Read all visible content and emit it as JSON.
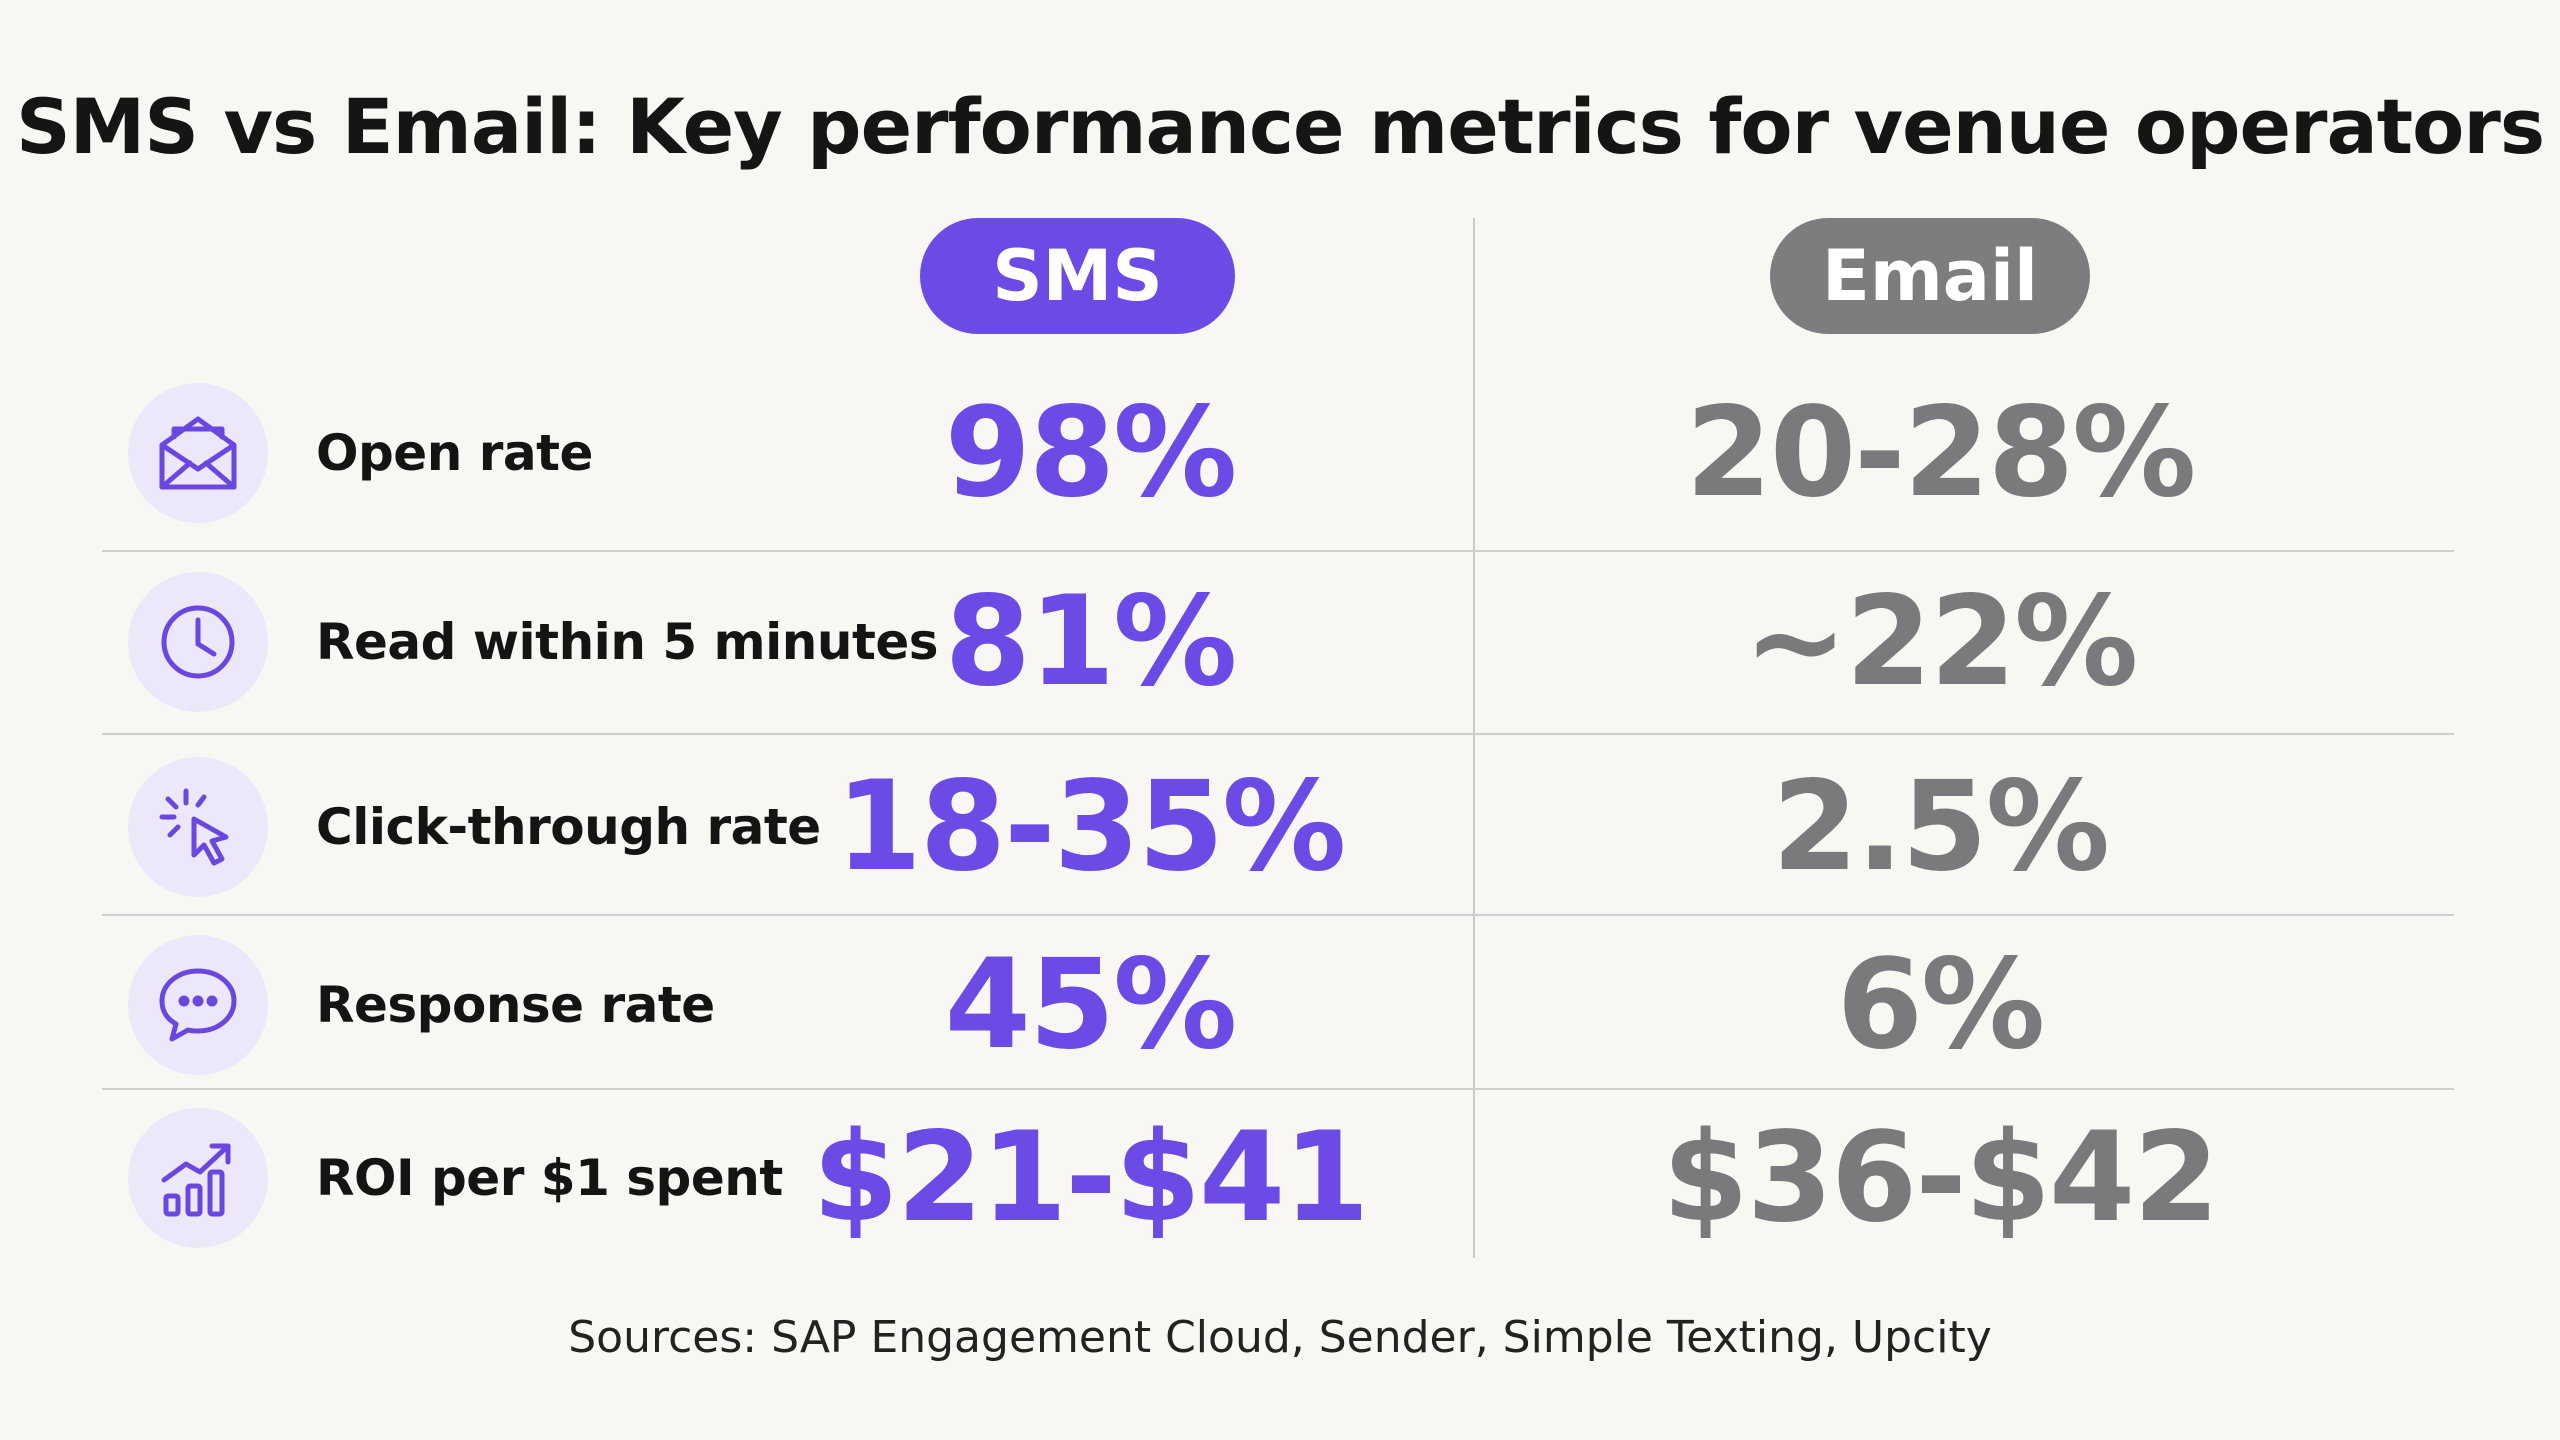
{
  "title": "SMS vs Email: Key performance metrics for venue operators",
  "columns": {
    "sms": "SMS",
    "email": "Email"
  },
  "sources": "Sources: SAP Engagement Cloud, Sender, Simple Texting, Upcity",
  "colors": {
    "sms": "#6c4ae6",
    "email": "#7d7d80",
    "icon_bg": "#ece7f9",
    "background": "#f9f7f3"
  },
  "chart_data": {
    "type": "table",
    "title": "SMS vs Email: Key performance metrics for venue operators",
    "columns": [
      "SMS",
      "Email"
    ],
    "rows": [
      {
        "metric": "Open rate",
        "icon": "envelope-icon",
        "sms": "98%",
        "email": "20-28%"
      },
      {
        "metric": "Read within 5 minutes",
        "icon": "clock-icon",
        "sms": "81%",
        "email": "~22%"
      },
      {
        "metric": "Click-through rate",
        "icon": "cursor-click-icon",
        "sms": "18-35%",
        "email": "2.5%"
      },
      {
        "metric": "Response rate",
        "icon": "chat-bubble-icon",
        "sms": "45%",
        "email": "6%"
      },
      {
        "metric": "ROI per $1 spent",
        "icon": "growth-chart-icon",
        "sms": "$21-$41",
        "email": "$36-$42"
      }
    ],
    "footnote": "Sources: SAP Engagement Cloud, Sender, Simple Texting, Upcity"
  }
}
